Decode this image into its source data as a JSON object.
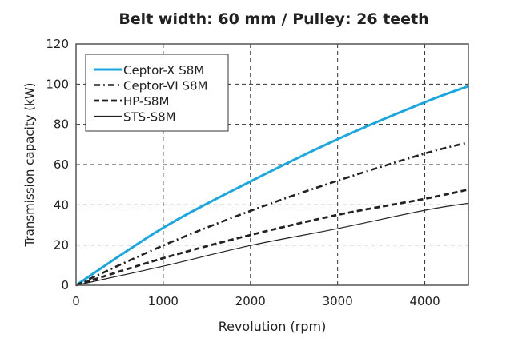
{
  "chart_data": {
    "type": "line",
    "title": "Belt width: 60 mm / Pulley: 26 teeth",
    "xlabel": "Revolution (rpm)",
    "ylabel": "Transmission capacity (kW)",
    "xlim": [
      0,
      4500
    ],
    "ylim": [
      0,
      120
    ],
    "xticks": [
      0,
      1000,
      2000,
      3000,
      4000
    ],
    "yticks": [
      0,
      20,
      40,
      60,
      80,
      100,
      120
    ],
    "grid": true,
    "legend_position": "top-left",
    "x": [
      0,
      1000,
      2000,
      3000,
      4000,
      4500
    ],
    "series": [
      {
        "name": "Ceptor-X  S8M",
        "color": "#1aa7e0",
        "style": "solid-thick",
        "values": [
          0,
          28.6,
          51.6,
          72.6,
          91,
          99
        ]
      },
      {
        "name": "Ceptor-VI S8M",
        "color": "#222222",
        "style": "dashdot",
        "values": [
          0,
          19.8,
          37,
          52,
          65.5,
          71
        ]
      },
      {
        "name": "HP-S8M",
        "color": "#222222",
        "style": "dashed",
        "values": [
          0,
          13.5,
          25,
          35,
          43,
          47.6
        ]
      },
      {
        "name": "STS-S8M",
        "color": "#222222",
        "style": "solid-thin",
        "values": [
          0,
          9.5,
          19.8,
          28.2,
          37.3,
          40.8
        ]
      }
    ]
  }
}
